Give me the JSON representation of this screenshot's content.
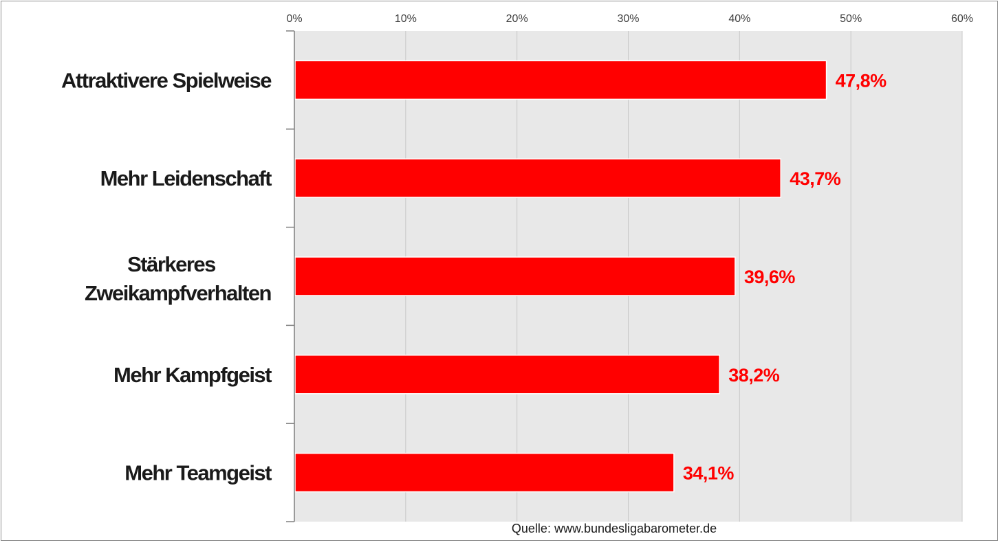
{
  "chart_data": {
    "type": "bar",
    "orientation": "horizontal",
    "categories": [
      "Attraktivere Spielweise",
      "Mehr Leidenschaft",
      "Stärkeres Zweikampfverhalten",
      "Mehr Kampfgeist",
      "Mehr Teamgeist"
    ],
    "values": [
      47.8,
      43.7,
      39.6,
      38.2,
      34.1
    ],
    "data_labels": [
      "47,8%",
      "43,7%",
      "39,6%",
      "38,2%",
      "34,1%"
    ],
    "x_ticks": [
      "0%",
      "10%",
      "20%",
      "30%",
      "40%",
      "50%",
      "60%"
    ],
    "xlim": [
      0,
      60
    ],
    "x_axis_position": "top",
    "grid": true,
    "legend": "none"
  },
  "source_note": "Quelle: www.bundesligabarometer.de",
  "colors": {
    "bar": "#ff0000",
    "data_label": "#ff0000",
    "plot_background": "#e8e8e8",
    "gridline": "#c8c8c8",
    "axis": "#7f7f7f"
  }
}
